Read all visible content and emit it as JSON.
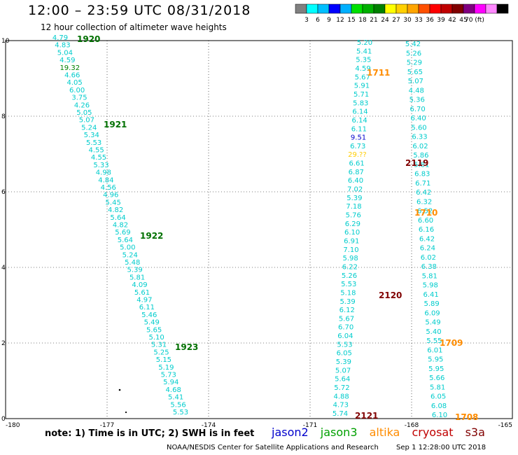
{
  "header": {
    "title": "12:00 – 23:59 UTC 08/31/2018",
    "subtitle": "12 hour collection of altimeter wave heights"
  },
  "color_scale": {
    "colors": [
      "#808080",
      "#00ffff",
      "#00bfff",
      "#0000ff",
      "#00b0ff",
      "#00e000",
      "#00b000",
      "#008000",
      "#ffff00",
      "#ffd000",
      "#ffa500",
      "#ff5000",
      "#ff0000",
      "#c00000",
      "#800000",
      "#800080",
      "#ff00ff",
      "#ff88ff",
      "#000000"
    ],
    "labels": [
      "3",
      "6",
      "9",
      "12",
      "15",
      "18",
      "21",
      "24",
      "27",
      "30",
      "33",
      "36",
      "39",
      "42",
      "45",
      "70 (ft)"
    ]
  },
  "map": {
    "lon_ticks": [
      "-180",
      "-177",
      "-174",
      "-171",
      "-168",
      "-165"
    ],
    "lat_ticks": [
      "10",
      "8",
      "6",
      "4",
      "2",
      "0"
    ],
    "grid": true,
    "colors": {
      "jason2": "#0000cc",
      "jason3": "#00a000",
      "altika": "#ff8c00",
      "cryosat": "#c00000",
      "s3a": "#800000",
      "swh": "#00cccc",
      "pass_label_jason3": "#007000",
      "pass_label_altika": "#ff8c00",
      "pass_label_s3a": "#800000"
    },
    "tracks": [
      {
        "satellite": "jason3",
        "values": [
          "4.79",
          "4.83",
          "5.04",
          "4.59",
          "19.32",
          "4.66",
          "4.05",
          "6.00",
          "3.75",
          "4.26",
          "5.05",
          "5.07",
          "5.24",
          "5.34",
          "5.53",
          "4.55",
          "4.55",
          "5.33",
          "4.98",
          "4.84",
          "4.56",
          "4.96",
          "5.45",
          "4.82",
          "5.64",
          "4.82",
          "5.69",
          "5.64",
          "5.00",
          "5.24",
          "5.48",
          "5.39",
          "5.81",
          "4.09",
          "5.61",
          "4.97",
          "6.11",
          "5.46",
          "5.49",
          "5.65",
          "5.10",
          "5.31",
          "5.25",
          "5.15",
          "5.19",
          "5.73",
          "5.94",
          "4.68",
          "5.41",
          "5.56",
          "5.53"
        ]
      },
      {
        "satellite": "s3a_left",
        "values": [
          "5.20",
          "5.41",
          "5.35",
          "4.59",
          "5.67",
          "5.91",
          "5.71",
          "5.83",
          "6.14",
          "6.14",
          "6.11",
          "9.51",
          "6.73",
          "29.??",
          "6.61",
          "6.87",
          "6.40",
          "7.02",
          "5.39",
          "7.18",
          "5.76",
          "6.29",
          "6.10",
          "6.91",
          "7.10",
          "5.98",
          "6.22",
          "5.26",
          "5.53",
          "5.18",
          "5.39",
          "6.12",
          "5.67",
          "6.70",
          "6.04",
          "5.53",
          "6.05",
          "5.39",
          "5.07",
          "5.64",
          "5.72",
          "4.88",
          "4.73",
          "5.74"
        ]
      },
      {
        "satellite": "s3a_right",
        "values": [
          "5.42",
          "5.26",
          "5.29",
          "5.65",
          "5.07",
          "4.48",
          "5.36",
          "6.70",
          "6.40",
          "5.60",
          "6.33",
          "6.02",
          "5.86",
          "5.81",
          "6.83",
          "6.71",
          "6.42",
          "6.32",
          "6.52",
          "6.60",
          "6.16",
          "6.42",
          "6.24",
          "6.02",
          "6.38",
          "5.81",
          "5.98",
          "6.41",
          "5.89",
          "6.09",
          "5.49",
          "5.40",
          "5.55",
          "6.01",
          "5.95",
          "5.95",
          "5.66",
          "5.81",
          "6.05",
          "6.08",
          "6.10"
        ]
      }
    ],
    "pass_labels": [
      {
        "text": "1920",
        "satellite": "jason3"
      },
      {
        "text": "1921",
        "satellite": "jason3"
      },
      {
        "text": "1922",
        "satellite": "jason3"
      },
      {
        "text": "1923",
        "satellite": "jason3"
      },
      {
        "text": "1711",
        "satellite": "altika"
      },
      {
        "text": "1710",
        "satellite": "altika"
      },
      {
        "text": "1709",
        "satellite": "altika"
      },
      {
        "text": "1708",
        "satellite": "altika"
      },
      {
        "text": "2119",
        "satellite": "s3a"
      },
      {
        "text": "2120",
        "satellite": "s3a"
      },
      {
        "text": "2121",
        "satellite": "s3a"
      }
    ]
  },
  "note": "note:  1) Time is in UTC;  2) SWH is in feet",
  "legend": {
    "jason2": "jason2",
    "jason3": "jason3",
    "altika": "altika",
    "cryosat": "cryosat",
    "s3a": "s3a"
  },
  "footer": {
    "credit": "NOAA/NESDIS Center for Satellite Applications and Research",
    "timestamp": "Sep  1 12:28:00 UTC 2018"
  }
}
